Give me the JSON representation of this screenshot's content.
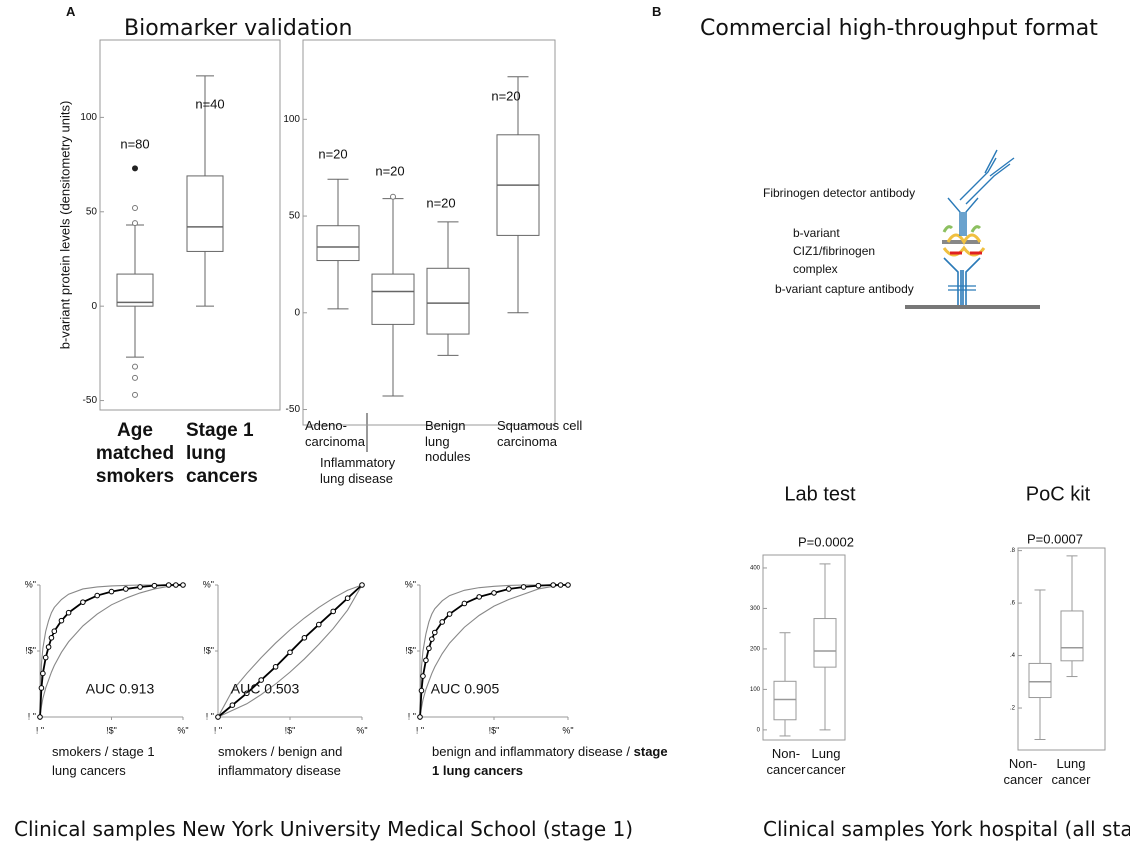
{
  "panel_a": {
    "label": "A",
    "title": "Biomarker validation",
    "footer": "Clinical samples New York University Medical School (stage 1)"
  },
  "panel_b": {
    "label": "B",
    "title": "Commercial high-throughput format",
    "footer": "Clinical samples York hospital (all sta"
  },
  "diagram": {
    "detector_label": "Fibrinogen detector antibody",
    "complex_label": [
      "b-variant",
      "CIZ1/fibrinogen",
      "complex"
    ],
    "capture_label": "b-variant capture antibody"
  },
  "chart_data": [
    {
      "type": "box",
      "ylabel": "b-variant protein levels (densitometry units)",
      "categories": [
        "Age matched smokers",
        "Stage 1 lung cancers"
      ],
      "annotations": [
        "n=80",
        "n=40"
      ],
      "boxes": [
        {
          "min": -27,
          "q1": 0,
          "median": 2,
          "q3": 17,
          "max": 43,
          "outliers": [
            52,
            44,
            -32,
            -38,
            -47
          ],
          "filled_outliers": [
            73
          ]
        },
        {
          "min": 0,
          "q1": 29,
          "median": 42,
          "q3": 69,
          "max": 122,
          "outliers": [],
          "filled_outliers": []
        }
      ],
      "ylim": [
        -55,
        141
      ],
      "yticks": [
        -50,
        0,
        50,
        100
      ],
      "color": "#666666"
    },
    {
      "type": "box",
      "categories": [
        "Adeno-carcinoma",
        "Inflammatory lung disease",
        "Benign lung nodules",
        "Squamous cell carcinoma"
      ],
      "annotations": [
        "n=20",
        "n=20",
        "n=20",
        "n=20"
      ],
      "boxes": [
        {
          "min": 2,
          "q1": 27,
          "median": 34,
          "q3": 45,
          "max": 69,
          "outliers": [],
          "filled_outliers": []
        },
        {
          "min": -43,
          "q1": -6,
          "median": 11,
          "q3": 20,
          "max": 59,
          "outliers": [
            60
          ],
          "filled_outliers": []
        },
        {
          "min": -22,
          "q1": -11,
          "median": 5,
          "q3": 23,
          "max": 47,
          "outliers": [],
          "filled_outliers": []
        },
        {
          "min": 0,
          "q1": 40,
          "median": 66,
          "q3": 92,
          "max": 122,
          "outliers": [],
          "filled_outliers": []
        }
      ],
      "ylim": [
        -58,
        141
      ],
      "yticks": [
        -50,
        0,
        50,
        100
      ],
      "color": "#666666"
    },
    {
      "type": "roc",
      "annotation": "AUC 0.913",
      "xlabel": "smokers / stage 1 lung cancers",
      "x": [
        0,
        0.01,
        0.02,
        0.04,
        0.06,
        0.08,
        0.1,
        0.15,
        0.2,
        0.3,
        0.4,
        0.5,
        0.6,
        0.7,
        0.8,
        0.9,
        0.95,
        1
      ],
      "series": [
        {
          "color": "#000000",
          "markers": true,
          "values": [
            0,
            0.22,
            0.33,
            0.45,
            0.53,
            0.6,
            0.65,
            0.73,
            0.79,
            0.87,
            0.92,
            0.95,
            0.97,
            0.985,
            0.995,
            1,
            1,
            1
          ]
        },
        {
          "color": "#888888",
          "markers": false,
          "values": [
            0,
            0.4,
            0.52,
            0.65,
            0.73,
            0.79,
            0.83,
            0.89,
            0.93,
            0.97,
            0.985,
            0.993,
            0.997,
            1,
            1,
            1,
            1,
            1
          ]
        },
        {
          "color": "#888888",
          "markers": false,
          "values": [
            0,
            0.08,
            0.14,
            0.22,
            0.28,
            0.34,
            0.39,
            0.49,
            0.57,
            0.69,
            0.78,
            0.85,
            0.9,
            0.94,
            0.97,
            0.99,
            1,
            1
          ]
        }
      ],
      "xlim": [
        0,
        1
      ],
      "ylim": [
        0,
        1
      ],
      "xticks": [
        {
          "value": 0,
          "label": "! \""
        },
        {
          "value": 0.5,
          "label": "!$\""
        },
        {
          "value": 1,
          "label": "%\""
        }
      ],
      "yticks": [
        {
          "value": 0,
          "label": "! \""
        },
        {
          "value": 0.5,
          "label": "!$\""
        },
        {
          "value": 1,
          "label": "%\""
        }
      ]
    },
    {
      "type": "roc",
      "annotation": "AUC 0.503",
      "xlabel": "smokers / benign and inflammatory  disease",
      "x": [
        0,
        0.1,
        0.2,
        0.3,
        0.4,
        0.5,
        0.6,
        0.7,
        0.8,
        0.9,
        1
      ],
      "series": [
        {
          "color": "#000000",
          "markers": true,
          "values": [
            0,
            0.09,
            0.18,
            0.28,
            0.38,
            0.49,
            0.6,
            0.7,
            0.8,
            0.9,
            1
          ]
        },
        {
          "color": "#888888",
          "markers": false,
          "values": [
            0,
            0.2,
            0.33,
            0.45,
            0.56,
            0.66,
            0.75,
            0.83,
            0.9,
            0.96,
            1
          ]
        },
        {
          "color": "#888888",
          "markers": false,
          "values": [
            0,
            0.05,
            0.1,
            0.17,
            0.25,
            0.34,
            0.44,
            0.55,
            0.67,
            0.81,
            1
          ]
        }
      ],
      "xlim": [
        0,
        1
      ],
      "ylim": [
        0,
        1
      ],
      "xticks": [
        {
          "value": 0,
          "label": "! \""
        },
        {
          "value": 0.5,
          "label": "!$\""
        },
        {
          "value": 1,
          "label": "%\""
        }
      ],
      "yticks": [
        {
          "value": 0,
          "label": "! \""
        },
        {
          "value": 0.5,
          "label": "!$\""
        },
        {
          "value": 1,
          "label": "%\""
        }
      ]
    },
    {
      "type": "roc",
      "annotation": "AUC 0.905",
      "xlabel": "benign and inflammatory disease /",
      "xlabel_bold": "stage 1 lung cancers",
      "x": [
        0,
        0.01,
        0.02,
        0.04,
        0.06,
        0.08,
        0.1,
        0.15,
        0.2,
        0.3,
        0.4,
        0.5,
        0.6,
        0.7,
        0.8,
        0.9,
        0.95,
        1
      ],
      "series": [
        {
          "color": "#000000",
          "markers": true,
          "values": [
            0,
            0.2,
            0.31,
            0.43,
            0.52,
            0.59,
            0.64,
            0.72,
            0.78,
            0.86,
            0.91,
            0.94,
            0.97,
            0.985,
            0.995,
            1,
            1,
            1
          ]
        },
        {
          "color": "#888888",
          "markers": false,
          "values": [
            0,
            0.38,
            0.5,
            0.63,
            0.72,
            0.78,
            0.82,
            0.88,
            0.92,
            0.96,
            0.98,
            0.99,
            0.997,
            1,
            1,
            1,
            1,
            1
          ]
        },
        {
          "color": "#888888",
          "markers": false,
          "values": [
            0,
            0.07,
            0.13,
            0.21,
            0.27,
            0.33,
            0.38,
            0.48,
            0.56,
            0.68,
            0.77,
            0.84,
            0.89,
            0.93,
            0.97,
            0.99,
            1,
            1
          ]
        }
      ],
      "xlim": [
        0,
        1
      ],
      "ylim": [
        0,
        1
      ],
      "xticks": [
        {
          "value": 0,
          "label": "! \""
        },
        {
          "value": 0.5,
          "label": "!$\""
        },
        {
          "value": 1,
          "label": "%\""
        }
      ],
      "yticks": [
        {
          "value": 0,
          "label": "! \""
        },
        {
          "value": 0.5,
          "label": "!$\""
        },
        {
          "value": 1,
          "label": "%\""
        }
      ]
    },
    {
      "type": "box",
      "title": "Lab test",
      "annotation": "P=0.0002",
      "categories": [
        "Non-cancer",
        "Lung cancer"
      ],
      "boxes": [
        {
          "min": -15,
          "q1": 25,
          "median": 75,
          "q3": 120,
          "max": 240,
          "outliers": [],
          "filled_outliers": []
        },
        {
          "min": 0,
          "q1": 155,
          "median": 195,
          "q3": 275,
          "max": 410,
          "outliers": [],
          "filled_outliers": []
        }
      ],
      "ylim": [
        -25,
        432
      ],
      "yticks": [
        0,
        100,
        200,
        300,
        400
      ],
      "color": "#999999"
    },
    {
      "type": "box",
      "title": "PoC kit",
      "annotation": "P=0.0007",
      "categories": [
        "Non-cancer",
        "Lung cancer"
      ],
      "boxes": [
        {
          "min": 0.08,
          "q1": 0.24,
          "median": 0.3,
          "q3": 0.37,
          "max": 0.65,
          "outliers": [],
          "filled_outliers": []
        },
        {
          "min": 0.32,
          "q1": 0.38,
          "median": 0.43,
          "q3": 0.57,
          "max": 0.78,
          "outliers": [],
          "filled_outliers": []
        }
      ],
      "ylim": [
        0.04,
        0.81
      ],
      "yticks": [
        {
          "value": 0.2,
          "label": ".2"
        },
        {
          "value": 0.4,
          "label": ".4"
        },
        {
          "value": 0.6,
          "label": ".6"
        },
        {
          "value": 0.8,
          "label": ".8"
        }
      ],
      "color": "#999999"
    }
  ]
}
